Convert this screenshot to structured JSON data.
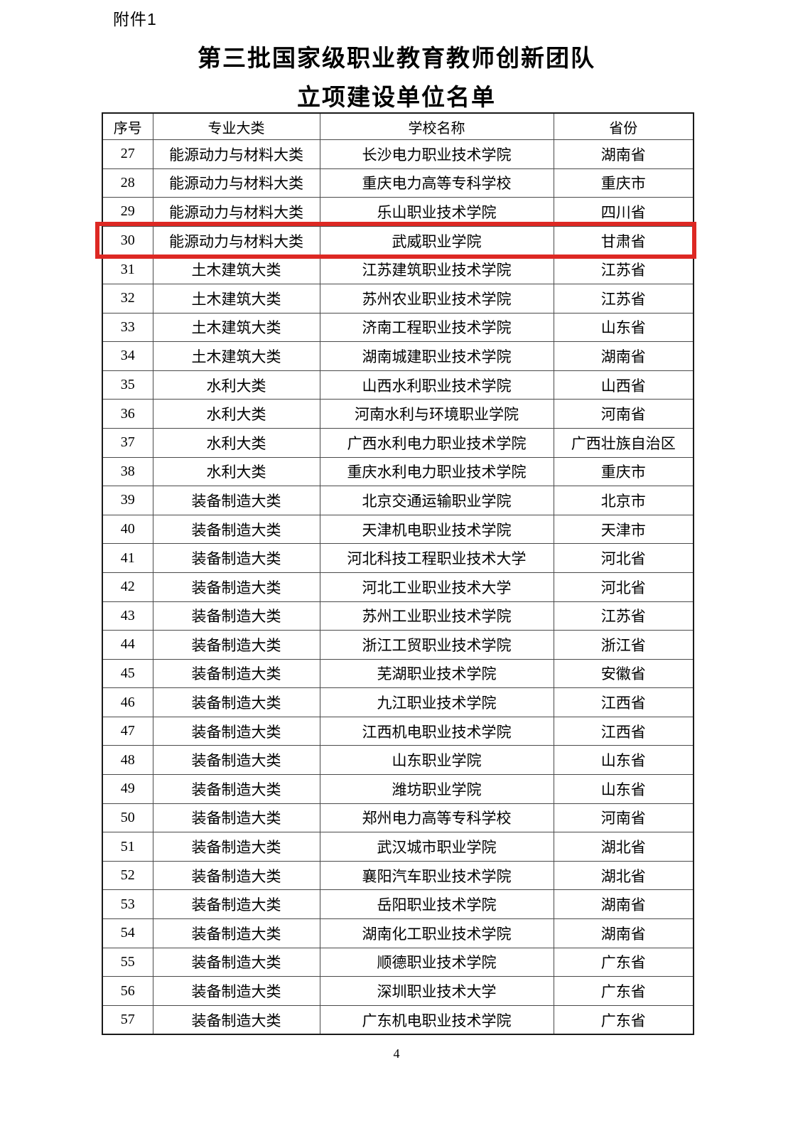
{
  "header": {
    "attachment": "附件1",
    "title_line1": "第三批国家级职业教育教师创新团队",
    "title_line2": "立项建设单位名单"
  },
  "table": {
    "headers": [
      "序号",
      "专业大类",
      "学校名称",
      "省份"
    ],
    "rows": [
      {
        "no": "27",
        "category": "能源动力与材料大类",
        "school": "长沙电力职业技术学院",
        "province": "湖南省",
        "highlighted": false
      },
      {
        "no": "28",
        "category": "能源动力与材料大类",
        "school": "重庆电力高等专科学校",
        "province": "重庆市",
        "highlighted": false
      },
      {
        "no": "29",
        "category": "能源动力与材料大类",
        "school": "乐山职业技术学院",
        "province": "四川省",
        "highlighted": false
      },
      {
        "no": "30",
        "category": "能源动力与材料大类",
        "school": "武威职业学院",
        "province": "甘肃省",
        "highlighted": true
      },
      {
        "no": "31",
        "category": "土木建筑大类",
        "school": "江苏建筑职业技术学院",
        "province": "江苏省",
        "highlighted": false
      },
      {
        "no": "32",
        "category": "土木建筑大类",
        "school": "苏州农业职业技术学院",
        "province": "江苏省",
        "highlighted": false
      },
      {
        "no": "33",
        "category": "土木建筑大类",
        "school": "济南工程职业技术学院",
        "province": "山东省",
        "highlighted": false
      },
      {
        "no": "34",
        "category": "土木建筑大类",
        "school": "湖南城建职业技术学院",
        "province": "湖南省",
        "highlighted": false
      },
      {
        "no": "35",
        "category": "水利大类",
        "school": "山西水利职业技术学院",
        "province": "山西省",
        "highlighted": false
      },
      {
        "no": "36",
        "category": "水利大类",
        "school": "河南水利与环境职业学院",
        "province": "河南省",
        "highlighted": false
      },
      {
        "no": "37",
        "category": "水利大类",
        "school": "广西水利电力职业技术学院",
        "province": "广西壮族自治区",
        "highlighted": false
      },
      {
        "no": "38",
        "category": "水利大类",
        "school": "重庆水利电力职业技术学院",
        "province": "重庆市",
        "highlighted": false
      },
      {
        "no": "39",
        "category": "装备制造大类",
        "school": "北京交通运输职业学院",
        "province": "北京市",
        "highlighted": false
      },
      {
        "no": "40",
        "category": "装备制造大类",
        "school": "天津机电职业技术学院",
        "province": "天津市",
        "highlighted": false
      },
      {
        "no": "41",
        "category": "装备制造大类",
        "school": "河北科技工程职业技术大学",
        "province": "河北省",
        "highlighted": false
      },
      {
        "no": "42",
        "category": "装备制造大类",
        "school": "河北工业职业技术大学",
        "province": "河北省",
        "highlighted": false
      },
      {
        "no": "43",
        "category": "装备制造大类",
        "school": "苏州工业职业技术学院",
        "province": "江苏省",
        "highlighted": false
      },
      {
        "no": "44",
        "category": "装备制造大类",
        "school": "浙江工贸职业技术学院",
        "province": "浙江省",
        "highlighted": false
      },
      {
        "no": "45",
        "category": "装备制造大类",
        "school": "芜湖职业技术学院",
        "province": "安徽省",
        "highlighted": false
      },
      {
        "no": "46",
        "category": "装备制造大类",
        "school": "九江职业技术学院",
        "province": "江西省",
        "highlighted": false
      },
      {
        "no": "47",
        "category": "装备制造大类",
        "school": "江西机电职业技术学院",
        "province": "江西省",
        "highlighted": false
      },
      {
        "no": "48",
        "category": "装备制造大类",
        "school": "山东职业学院",
        "province": "山东省",
        "highlighted": false
      },
      {
        "no": "49",
        "category": "装备制造大类",
        "school": "潍坊职业学院",
        "province": "山东省",
        "highlighted": false
      },
      {
        "no": "50",
        "category": "装备制造大类",
        "school": "郑州电力高等专科学校",
        "province": "河南省",
        "highlighted": false
      },
      {
        "no": "51",
        "category": "装备制造大类",
        "school": "武汉城市职业学院",
        "province": "湖北省",
        "highlighted": false
      },
      {
        "no": "52",
        "category": "装备制造大类",
        "school": "襄阳汽车职业技术学院",
        "province": "湖北省",
        "highlighted": false
      },
      {
        "no": "53",
        "category": "装备制造大类",
        "school": "岳阳职业技术学院",
        "province": "湖南省",
        "highlighted": false
      },
      {
        "no": "54",
        "category": "装备制造大类",
        "school": "湖南化工职业技术学院",
        "province": "湖南省",
        "highlighted": false
      },
      {
        "no": "55",
        "category": "装备制造大类",
        "school": "顺德职业技术学院",
        "province": "广东省",
        "highlighted": false
      },
      {
        "no": "56",
        "category": "装备制造大类",
        "school": "深圳职业技术大学",
        "province": "广东省",
        "highlighted": false
      },
      {
        "no": "57",
        "category": "装备制造大类",
        "school": "广东机电职业技术学院",
        "province": "广东省",
        "highlighted": false
      }
    ]
  },
  "footer": {
    "page_number": "4"
  },
  "colors": {
    "highlight_border": "#dd2823",
    "table_border": "#1a1a1a",
    "text": "#000000",
    "background": "#ffffff"
  }
}
